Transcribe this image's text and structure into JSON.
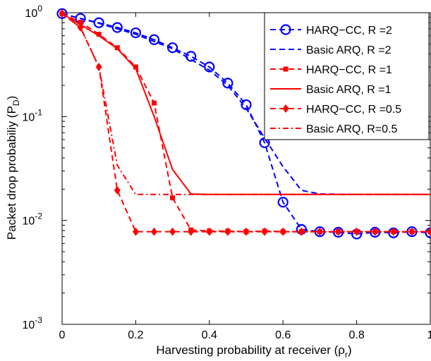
{
  "chart_data": {
    "type": "line",
    "xlabel": "Harvesting probability at receiver (ρ",
    "xlabel_sub": "r",
    "xlabel_close": ")",
    "ylabel": "Packet drop probabiliy (P",
    "ylabel_sub": "D",
    "ylabel_close": ")",
    "xlim": [
      0,
      1
    ],
    "ylim": [
      0.001,
      1
    ],
    "y_scale": "log",
    "grid": false,
    "legend_position": "top-right",
    "x_ticks": [
      {
        "value": 0,
        "label": "0"
      },
      {
        "value": 0.2,
        "label": "0.2"
      },
      {
        "value": 0.4,
        "label": "0.4"
      },
      {
        "value": 0.6,
        "label": "0.6"
      },
      {
        "value": 0.8,
        "label": "0.8"
      },
      {
        "value": 1,
        "label": "1"
      }
    ],
    "y_ticks": [
      {
        "value": 1,
        "base": "10",
        "exp": "0"
      },
      {
        "value": 0.1,
        "base": "10",
        "exp": "-1"
      },
      {
        "value": 0.01,
        "base": "10",
        "exp": "-2"
      },
      {
        "value": 0.001,
        "base": "10",
        "exp": "-3"
      }
    ],
    "series": [
      {
        "name": "HARQ−CC, R =2",
        "color": "#0000ff",
        "dash": "dashed",
        "marker": "circle",
        "x": [
          0,
          0.05,
          0.1,
          0.15,
          0.2,
          0.25,
          0.3,
          0.35,
          0.4,
          0.45,
          0.5,
          0.55,
          0.6,
          0.65,
          0.7,
          0.75,
          0.8,
          0.85,
          0.9,
          0.95,
          1.0
        ],
        "y": [
          0.98,
          0.88,
          0.8,
          0.72,
          0.64,
          0.55,
          0.46,
          0.38,
          0.3,
          0.21,
          0.13,
          0.056,
          0.015,
          0.0082,
          0.0078,
          0.0077,
          0.0074,
          0.0077,
          0.0076,
          0.0078,
          0.0076
        ]
      },
      {
        "name": "Basic ARQ, R =2",
        "color": "#0000ff",
        "dash": "dashed",
        "marker": "none",
        "x": [
          0,
          0.1,
          0.2,
          0.3,
          0.4,
          0.45,
          0.5,
          0.55,
          0.6,
          0.65,
          0.7,
          0.8,
          0.9,
          1.0
        ],
        "y": [
          0.98,
          0.79,
          0.62,
          0.45,
          0.28,
          0.2,
          0.12,
          0.062,
          0.033,
          0.0195,
          0.018,
          0.0178,
          0.0178,
          0.0178
        ]
      },
      {
        "name": "HARQ−CC, R =1",
        "color": "#ff0000",
        "dash": "dashed",
        "marker": "square",
        "x": [
          0,
          0.05,
          0.1,
          0.15,
          0.2,
          0.25,
          0.3,
          0.35,
          0.4,
          0.45,
          0.5,
          0.55,
          0.6,
          0.65,
          0.7,
          0.75,
          0.8,
          0.85,
          0.9,
          0.95,
          1.0
        ],
        "y": [
          0.98,
          0.81,
          0.62,
          0.46,
          0.3,
          0.135,
          0.0165,
          0.0081,
          0.0079,
          0.0079,
          0.0078,
          0.0079,
          0.0078,
          0.0078,
          0.0078,
          0.0078,
          0.0078,
          0.0078,
          0.0078,
          0.0078,
          0.0078
        ]
      },
      {
        "name": "Basic ARQ, R =1",
        "color": "#ff0000",
        "dash": "solid",
        "marker": "none",
        "x": [
          0,
          0.1,
          0.15,
          0.2,
          0.25,
          0.3,
          0.35,
          0.4,
          0.6,
          0.8,
          1.0
        ],
        "y": [
          0.98,
          0.6,
          0.45,
          0.29,
          0.1,
          0.031,
          0.018,
          0.0178,
          0.0178,
          0.0178,
          0.0178
        ]
      },
      {
        "name": "HARQ−CC, R =0.5",
        "color": "#ff0000",
        "dash": "dashed",
        "marker": "diamond",
        "x": [
          0,
          0.05,
          0.1,
          0.15,
          0.2,
          0.25,
          0.3,
          0.35,
          0.4,
          0.45,
          0.5,
          0.55,
          0.6,
          0.65,
          0.7,
          0.75,
          0.8,
          0.85,
          0.9,
          0.95,
          1.0
        ],
        "y": [
          0.98,
          0.72,
          0.3,
          0.0195,
          0.0078,
          0.0078,
          0.0078,
          0.0078,
          0.0078,
          0.0078,
          0.0078,
          0.0078,
          0.0078,
          0.0078,
          0.0078,
          0.0078,
          0.0078,
          0.0078,
          0.0078,
          0.0078,
          0.0078
        ]
      },
      {
        "name": "Basic ARQ, R=0.5",
        "color": "#ff0000",
        "dash": "dashdot",
        "marker": "none",
        "x": [
          0,
          0.05,
          0.1,
          0.15,
          0.2,
          0.3,
          0.4,
          0.6,
          0.8,
          1.0
        ],
        "y": [
          0.98,
          0.72,
          0.3,
          0.034,
          0.0178,
          0.0178,
          0.0178,
          0.0178,
          0.0178,
          0.0178
        ]
      }
    ]
  }
}
